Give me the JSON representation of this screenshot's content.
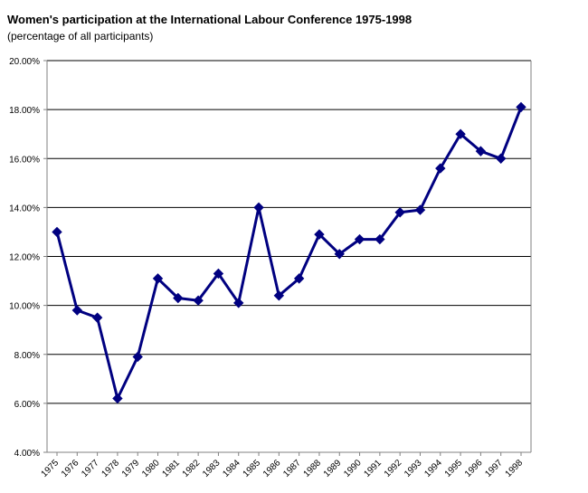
{
  "chart_data": {
    "type": "line",
    "title": "Women's participation at the International Labour Conference 1975-1998",
    "subtitle": "(percentage of all participants)",
    "xlabel": "",
    "ylabel": "",
    "categories": [
      "1975",
      "1976",
      "1977",
      "1978",
      "1979",
      "1980",
      "1981",
      "1982",
      "1983",
      "1984",
      "1985",
      "1986",
      "1987",
      "1988",
      "1989",
      "1990",
      "1991",
      "1992",
      "1993",
      "1994",
      "1995",
      "1996",
      "1997",
      "1998"
    ],
    "series": [
      {
        "name": "Women's participation",
        "values": [
          13.0,
          9.8,
          9.5,
          6.2,
          7.9,
          11.1,
          10.3,
          10.2,
          11.3,
          10.1,
          14.0,
          10.4,
          11.1,
          12.9,
          12.1,
          12.7,
          12.7,
          13.8,
          13.9,
          15.6,
          17.0,
          16.3,
          16.0,
          18.1
        ]
      }
    ],
    "ylim": [
      4,
      20
    ],
    "yticks": [
      4,
      6,
      8,
      10,
      12,
      14,
      16,
      18,
      20
    ],
    "ytick_labels": [
      "4.00%",
      "6.00%",
      "8.00%",
      "10.00%",
      "12.00%",
      "14.00%",
      "16.00%",
      "18.00%",
      "20.00%"
    ],
    "grid": true,
    "legend": "none",
    "colors": {
      "line": "#000080",
      "marker": "#000080",
      "grid": "#000000",
      "axis": "#808080"
    }
  }
}
